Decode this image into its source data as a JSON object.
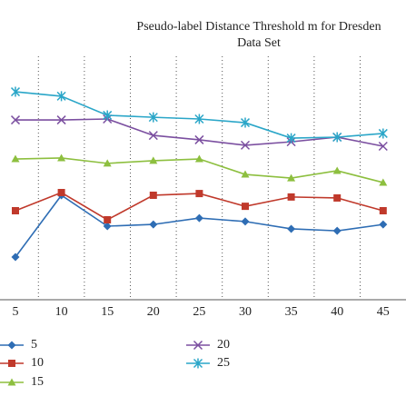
{
  "chart_data": {
    "type": "line",
    "title": [
      "Pseudo-label Distance Threshold m for Dresden",
      "Data Set"
    ],
    "categories": [
      "5",
      "10",
      "15",
      "20",
      "25",
      "30",
      "35",
      "40",
      "45"
    ],
    "ylim": [
      0,
      100
    ],
    "series": [
      {
        "name": "5",
        "color": "#2e6db4",
        "marker": "diamond",
        "values": [
          17.4,
          42.6,
          30.0,
          30.7,
          33.3,
          31.9,
          28.9,
          28.1,
          30.7
        ]
      },
      {
        "name": "10",
        "color": "#c0392b",
        "marker": "square",
        "values": [
          36.3,
          43.7,
          32.6,
          42.6,
          43.3,
          38.1,
          41.9,
          41.5,
          36.3
        ]
      },
      {
        "name": "15",
        "color": "#8dbf3f",
        "marker": "triangle",
        "values": [
          57.4,
          57.8,
          55.6,
          56.7,
          57.4,
          51.1,
          49.6,
          52.6,
          47.8
        ]
      },
      {
        "name": "20",
        "color": "#7b4fa0",
        "marker": "x",
        "values": [
          73.3,
          73.3,
          73.7,
          67.0,
          65.2,
          63.0,
          64.4,
          66.3,
          62.6
        ]
      },
      {
        "name": "25",
        "color": "#2aa6c8",
        "marker": "star",
        "values": [
          84.8,
          83.0,
          75.2,
          74.4,
          73.7,
          72.2,
          65.9,
          66.3,
          67.8
        ]
      }
    ]
  }
}
